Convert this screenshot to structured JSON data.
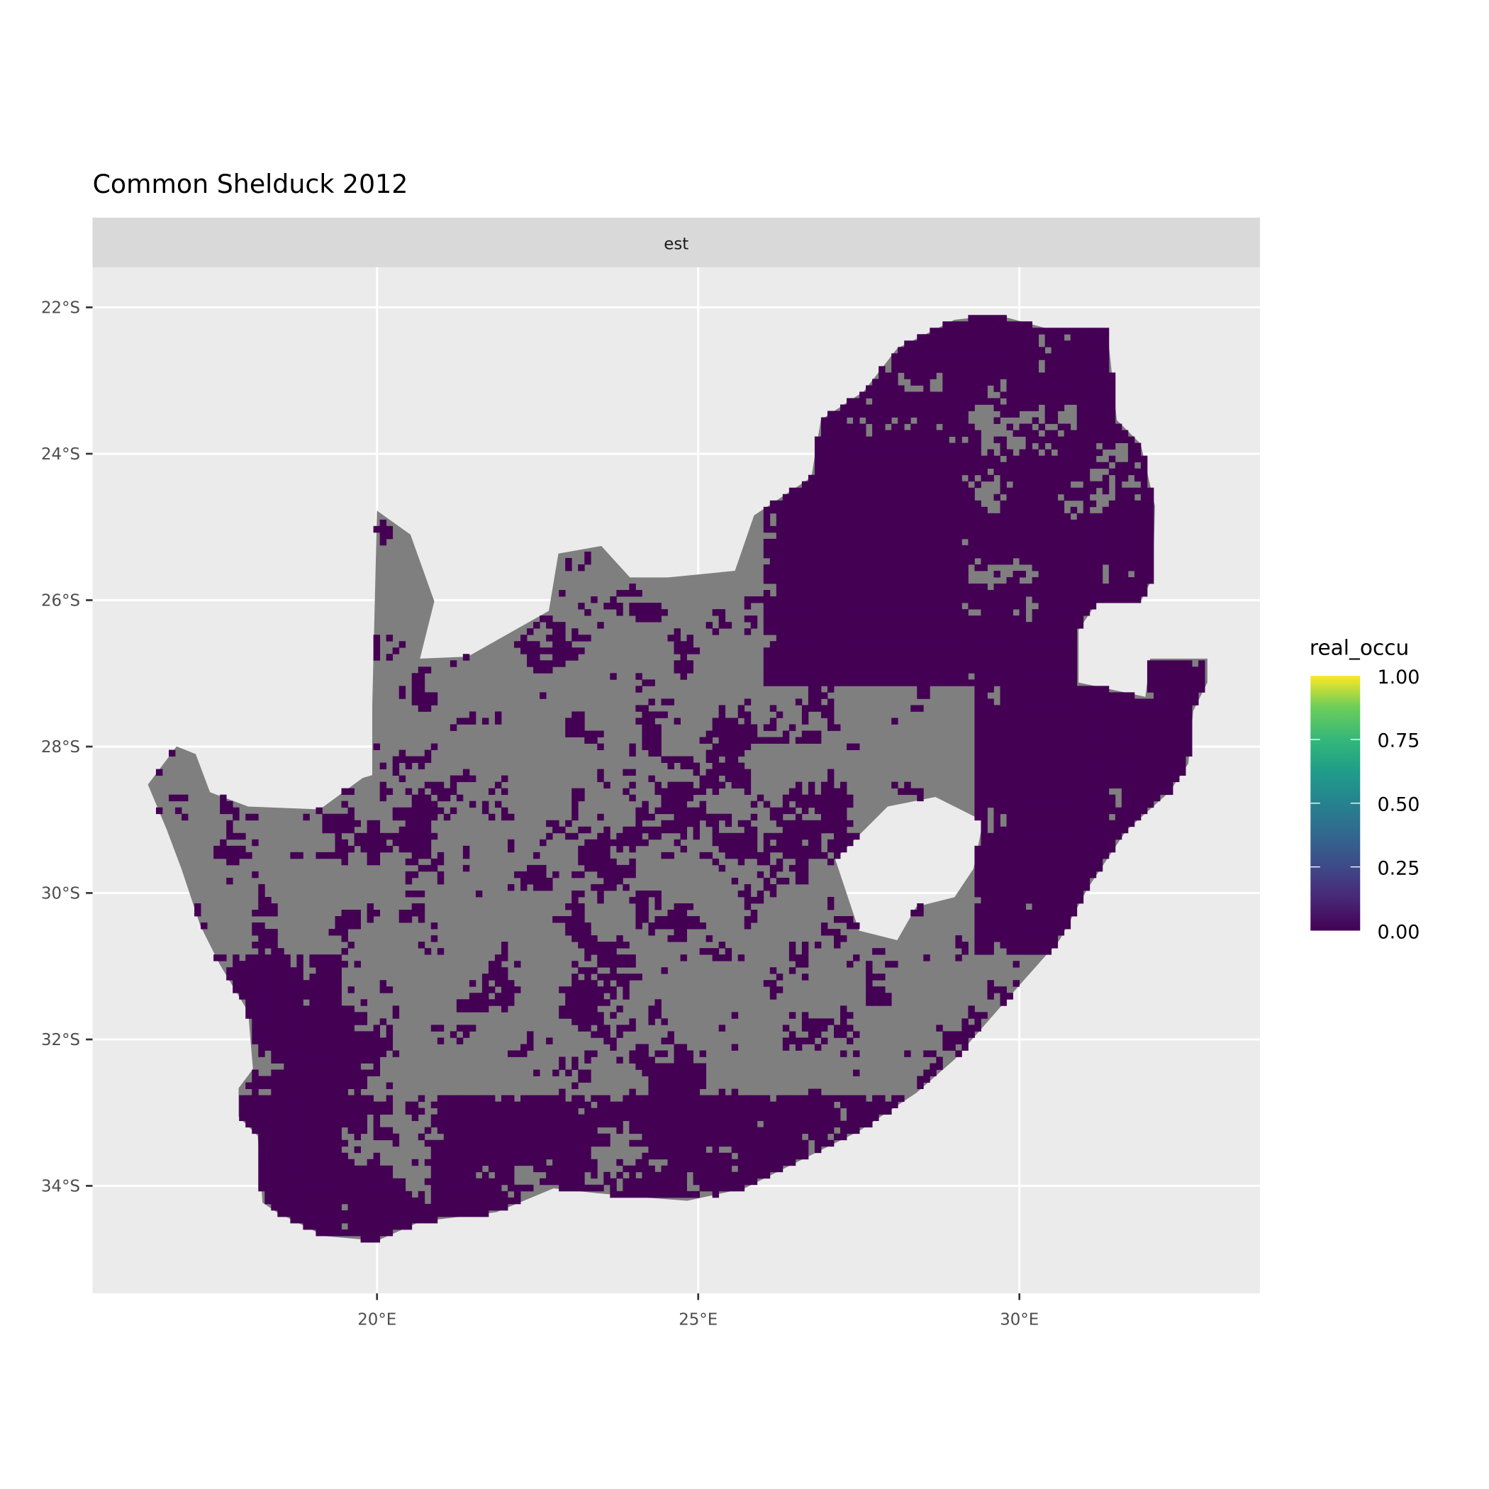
{
  "chart_data": {
    "type": "heatmap",
    "title": "Common Shelduck 2012",
    "facet_label": "est",
    "x_ticks": [
      "20°E",
      "25°E",
      "30°E"
    ],
    "x_tick_values": [
      20,
      25,
      30
    ],
    "y_ticks": [
      "22°S",
      "24°S",
      "26°S",
      "28°S",
      "30°S",
      "32°S",
      "34°S"
    ],
    "y_tick_values": [
      -22,
      -24,
      -26,
      -28,
      -30,
      -32,
      -34
    ],
    "xlim": [
      15.6,
      33.8
    ],
    "ylim": [
      -35.4,
      -21.5
    ],
    "grid": true,
    "legend": {
      "title": "real_occu",
      "placement": "right",
      "ticks": [
        "0.00",
        "0.25",
        "0.50",
        "0.75",
        "1.00"
      ],
      "tick_values": [
        0,
        0.25,
        0.5,
        0.75,
        1
      ],
      "colormap": "viridis",
      "range": [
        0,
        1
      ]
    },
    "cell_value_shown": 0,
    "colors": {
      "zero": "#440154",
      "na": "#7f7f7f",
      "panel": "#ebebeb",
      "strip": "#d9d9d9"
    }
  }
}
